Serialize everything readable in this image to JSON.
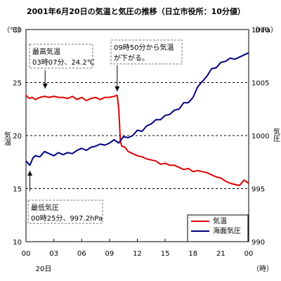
{
  "chart_data": {
    "type": "line",
    "title": "2001年6月20日の気温と気圧の推移（日立市役所：10分値）",
    "x_axis": {
      "ticks": [
        "00",
        "03",
        "06",
        "09",
        "12",
        "15",
        "18",
        "21",
        "00"
      ],
      "tick_hours": [
        0,
        3,
        6,
        9,
        12,
        15,
        18,
        21,
        24
      ],
      "date_label": "20日",
      "unit": "（時）",
      "range": [
        0,
        24
      ]
    },
    "y_left": {
      "label": "気温",
      "unit": "（℃）",
      "ticks": [
        "10",
        "15",
        "20",
        "25",
        "30"
      ],
      "tick_values": [
        10,
        15,
        20,
        25,
        30
      ],
      "range": [
        10,
        30
      ]
    },
    "y_right": {
      "label": "気圧",
      "unit": "（hPa）",
      "ticks": [
        "990",
        "995",
        "1000",
        "1005",
        "1010"
      ],
      "tick_values": [
        990,
        995,
        1000,
        1005,
        1010
      ],
      "range": [
        990,
        1010
      ]
    },
    "grid": "dashed horizontal at 15, 20, 25 (℃)",
    "legend": {
      "placement": "bottom-right",
      "items": [
        {
          "label": "気温",
          "color": "#e00000"
        },
        {
          "label": "海面気圧",
          "color": "#000080"
        }
      ]
    },
    "series": [
      {
        "name": "気温",
        "axis": "left",
        "color": "#e00000",
        "points": [
          [
            0,
            23.8
          ],
          [
            0.33,
            23.5
          ],
          [
            0.67,
            23.6
          ],
          [
            1,
            23.4
          ],
          [
            1.5,
            23.6
          ],
          [
            2,
            23.7
          ],
          [
            2.5,
            23.6
          ],
          [
            3,
            23.7
          ],
          [
            3.5,
            23.6
          ],
          [
            4,
            23.6
          ],
          [
            4.5,
            23.5
          ],
          [
            5,
            23.7
          ],
          [
            5.5,
            23.4
          ],
          [
            6,
            23.6
          ],
          [
            6.5,
            23.3
          ],
          [
            7,
            23.5
          ],
          [
            7.5,
            23.6
          ],
          [
            8,
            23.4
          ],
          [
            8.5,
            23.6
          ],
          [
            9,
            23.6
          ],
          [
            9.5,
            23.7
          ],
          [
            9.83,
            23.8
          ],
          [
            10,
            22.5
          ],
          [
            10.17,
            19.5
          ],
          [
            10.33,
            19.0
          ],
          [
            10.67,
            18.9
          ],
          [
            11,
            18.5
          ],
          [
            11.5,
            18.3
          ],
          [
            12,
            18.1
          ],
          [
            12.5,
            18.0
          ],
          [
            13,
            17.8
          ],
          [
            13.5,
            17.7
          ],
          [
            14,
            17.6
          ],
          [
            14.5,
            17.3
          ],
          [
            15,
            17.4
          ],
          [
            15.5,
            17.2
          ],
          [
            16,
            17.2
          ],
          [
            16.5,
            17.0
          ],
          [
            17,
            16.8
          ],
          [
            17.5,
            16.9
          ],
          [
            18,
            16.6
          ],
          [
            18.5,
            16.7
          ],
          [
            19,
            16.6
          ],
          [
            19.5,
            16.5
          ],
          [
            20,
            16.3
          ],
          [
            20.5,
            16.1
          ],
          [
            21,
            16.0
          ],
          [
            21.5,
            15.7
          ],
          [
            22,
            15.5
          ],
          [
            22.5,
            15.4
          ],
          [
            23,
            15.3
          ],
          [
            23.5,
            15.8
          ],
          [
            24,
            15.5
          ]
        ]
      },
      {
        "name": "海面気圧",
        "axis": "right",
        "color": "#000080",
        "points": [
          [
            0,
            997.6
          ],
          [
            0.42,
            997.2
          ],
          [
            0.75,
            997.9
          ],
          [
            1,
            998.1
          ],
          [
            1.5,
            998.0
          ],
          [
            2,
            998.5
          ],
          [
            2.5,
            998.3
          ],
          [
            3,
            998.1
          ],
          [
            3.5,
            998.4
          ],
          [
            4,
            998.2
          ],
          [
            4.5,
            998.4
          ],
          [
            5,
            998.3
          ],
          [
            5.5,
            998.6
          ],
          [
            6,
            998.8
          ],
          [
            6.5,
            998.6
          ],
          [
            7,
            998.9
          ],
          [
            7.5,
            999.0
          ],
          [
            8,
            999.2
          ],
          [
            8.5,
            999.1
          ],
          [
            9,
            999.3
          ],
          [
            9.5,
            999.6
          ],
          [
            10,
            999.3
          ],
          [
            10.5,
            999.9
          ],
          [
            11,
            999.8
          ],
          [
            11.5,
            1000.0
          ],
          [
            12,
            1000.5
          ],
          [
            12.5,
            1000.4
          ],
          [
            13,
            1000.9
          ],
          [
            13.5,
            1001.1
          ],
          [
            14,
            1001.5
          ],
          [
            14.5,
            1001.5
          ],
          [
            15,
            1001.9
          ],
          [
            15.5,
            1002.0
          ],
          [
            16,
            1002.4
          ],
          [
            16.5,
            1002.5
          ],
          [
            17,
            1003.1
          ],
          [
            17.5,
            1003.1
          ],
          [
            18,
            1003.6
          ],
          [
            18.5,
            1004.6
          ],
          [
            19,
            1005.1
          ],
          [
            19.5,
            1005.6
          ],
          [
            20,
            1006.3
          ],
          [
            20.5,
            1006.4
          ],
          [
            21,
            1006.9
          ],
          [
            21.5,
            1007.0
          ],
          [
            22,
            1007.3
          ],
          [
            22.5,
            1007.2
          ],
          [
            23,
            1007.4
          ],
          [
            23.5,
            1007.6
          ],
          [
            24,
            1007.8
          ]
        ]
      }
    ],
    "annotations": [
      {
        "lines": [
          "最高気温",
          "03時07分、24.2℃"
        ],
        "x": 3.12,
        "y": 24.2,
        "axis": "left"
      },
      {
        "lines": [
          "09時50分から気温",
          "が下がる。"
        ],
        "x": 9.83,
        "y": 23.8,
        "axis": "left"
      },
      {
        "lines": [
          "最低気圧",
          "00時25分、997.2hPa"
        ],
        "x": 0.42,
        "y": 997.2,
        "axis": "right"
      }
    ]
  }
}
